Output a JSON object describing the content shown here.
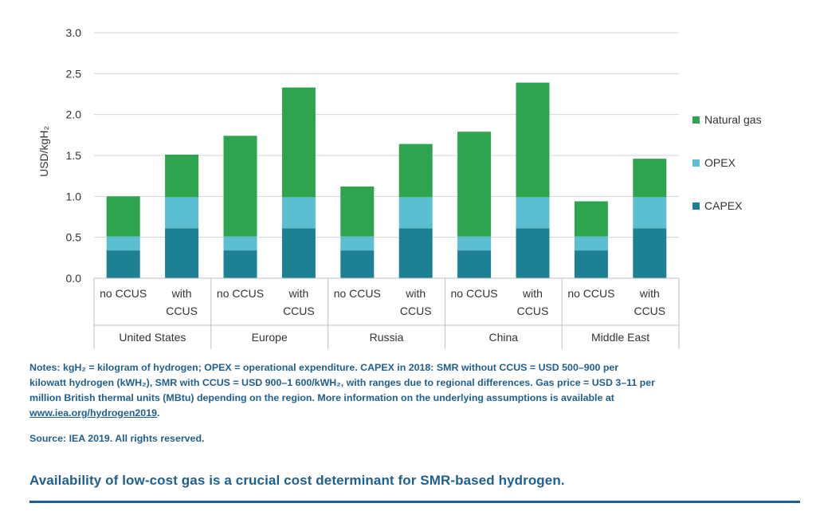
{
  "chart_data": {
    "type": "bar",
    "stacked": true,
    "ylabel": "USD/kgH₂",
    "ylim": [
      0,
      3.0
    ],
    "yticks": [
      "0.0",
      "0.5",
      "1.0",
      "1.5",
      "2.0",
      "2.5",
      "3.0"
    ],
    "grid": true,
    "legend_position": "right",
    "groups": [
      "United States",
      "Europe",
      "Russia",
      "China",
      "Middle East"
    ],
    "categories": [
      "no CCUS|United States",
      "with CCUS|United States",
      "no CCUS|Europe",
      "with CCUS|Europe",
      "no CCUS|Russia",
      "with CCUS|Russia",
      "no CCUS|China",
      "with CCUS|China",
      "no CCUS|Middle East",
      "with CCUS|Middle East"
    ],
    "category_labels": [
      [
        "no CCUS"
      ],
      [
        "with",
        "CCUS"
      ],
      [
        "no CCUS"
      ],
      [
        "with",
        "CCUS"
      ],
      [
        "no CCUS"
      ],
      [
        "with",
        "CCUS"
      ],
      [
        "no CCUS"
      ],
      [
        "with",
        "CCUS"
      ],
      [
        "no CCUS"
      ],
      [
        "with",
        "CCUS"
      ]
    ],
    "series": [
      {
        "name": "CAPEX",
        "color": "#1d8093",
        "values": [
          0.34,
          0.61,
          0.34,
          0.61,
          0.34,
          0.61,
          0.34,
          0.61,
          0.34,
          0.61
        ]
      },
      {
        "name": "OPEX",
        "color": "#5bbfd1",
        "values": [
          0.17,
          0.38,
          0.17,
          0.38,
          0.17,
          0.38,
          0.17,
          0.38,
          0.17,
          0.38
        ]
      },
      {
        "name": "Natural gas",
        "color": "#2ea44f",
        "values": [
          0.49,
          0.52,
          1.23,
          1.34,
          0.61,
          0.65,
          1.28,
          1.4,
          0.43,
          0.47
        ]
      }
    ],
    "legend_order": [
      "Natural gas",
      "OPEX",
      "CAPEX"
    ]
  },
  "notes": {
    "line1": "Notes: kgH₂ = kilogram of hydrogen; OPEX = operational expenditure. CAPEX in 2018: SMR without CCUS = USD 500–900 per",
    "line2": "kilowatt hydrogen (kWH₂), SMR with CCUS = USD 900–1 600/kWH₂, with ranges due to regional differences. Gas price = USD 3–11 per",
    "line3": "million British thermal units (MBtu) depending on the region. More information on the underlying assumptions is available at",
    "link": "www.iea.org/hydrogen2019",
    "link_suffix": "."
  },
  "source": "Source: IEA 2019. All rights reserved.",
  "takeaway": "Availability of low-cost gas is a crucial cost determinant for SMR-based hydrogen."
}
